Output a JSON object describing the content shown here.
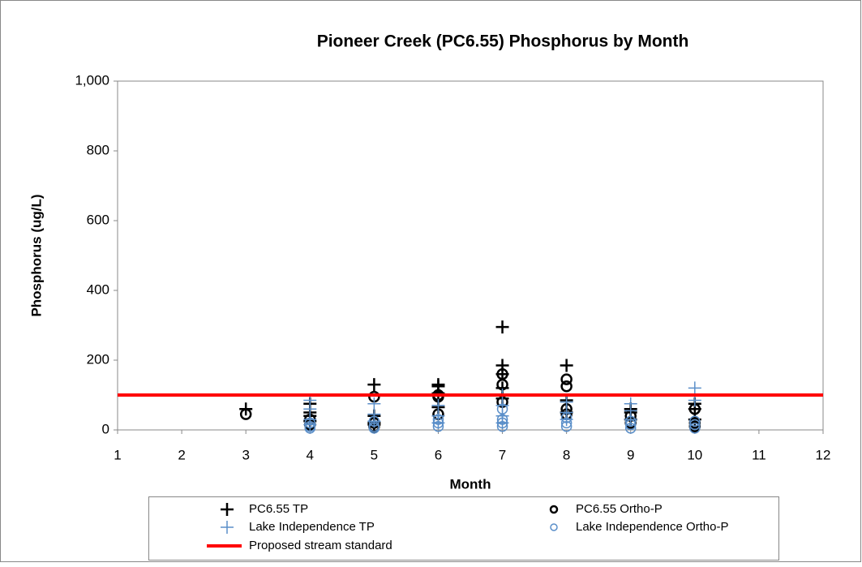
{
  "chart_data": {
    "type": "scatter",
    "title": "Pioneer Creek (PC6.55) Phosphorus  by Month",
    "x_label": "Month",
    "y_label": "Phosphorus (ug/L)",
    "xlim": [
      1,
      12
    ],
    "xticks": [
      1,
      2,
      3,
      4,
      5,
      6,
      7,
      8,
      9,
      10,
      11,
      12
    ],
    "ylim": [
      0,
      1000
    ],
    "yticks": [
      0,
      200,
      400,
      600,
      800,
      {
        "value": 1000,
        "label": "1,000"
      }
    ],
    "grid": false,
    "series": [
      {
        "name": "PC6.55 TP",
        "color": "#000000",
        "marker": "plus",
        "x": [
          3,
          4,
          4,
          4,
          4,
          5,
          5,
          5,
          5,
          6,
          6,
          6,
          6,
          7,
          7,
          7,
          7,
          7,
          8,
          8,
          8,
          9,
          9,
          9,
          10,
          10,
          10
        ],
        "values": [
          60,
          75,
          40,
          25,
          50,
          130,
          40,
          20,
          15,
          130,
          65,
          105,
          125,
          295,
          185,
          120,
          160,
          90,
          185,
          85,
          50,
          60,
          30,
          50,
          75,
          30,
          60
        ]
      },
      {
        "name": "PC6.55 Ortho-P",
        "color": "#000000",
        "marker": "circle",
        "x": [
          3,
          4,
          4,
          5,
          5,
          5,
          6,
          6,
          6,
          7,
          7,
          7,
          8,
          8,
          8,
          8,
          9,
          9,
          10,
          10,
          10
        ],
        "values": [
          45,
          30,
          15,
          95,
          20,
          10,
          100,
          95,
          45,
          160,
          130,
          80,
          145,
          125,
          45,
          60,
          40,
          20,
          60,
          10,
          20
        ]
      },
      {
        "name": "Lake Independence TP",
        "color": "#5b8fc9",
        "marker": "plus",
        "x": [
          4,
          4,
          4,
          4,
          5,
          5,
          5,
          6,
          6,
          6,
          7,
          7,
          7,
          7,
          8,
          8,
          8,
          9,
          9,
          9,
          10,
          10
        ],
        "values": [
          85,
          60,
          30,
          15,
          75,
          45,
          25,
          70,
          40,
          20,
          100,
          70,
          40,
          20,
          80,
          50,
          30,
          75,
          55,
          30,
          120,
          85
        ]
      },
      {
        "name": "Lake Independence Ortho-P",
        "color": "#5b8fc9",
        "marker": "circle",
        "x": [
          4,
          4,
          4,
          5,
          5,
          5,
          6,
          6,
          6,
          7,
          7,
          7,
          7,
          8,
          8,
          8,
          9,
          9,
          9,
          10,
          10,
          10
        ],
        "values": [
          10,
          5,
          20,
          10,
          25,
          5,
          10,
          20,
          30,
          10,
          20,
          30,
          60,
          10,
          20,
          35,
          5,
          15,
          25,
          5,
          15,
          25
        ]
      },
      {
        "name": "Proposed stream standard",
        "color": "#ff0000",
        "marker": "line",
        "x": [
          1,
          12
        ],
        "values": [
          100,
          100
        ]
      }
    ]
  }
}
